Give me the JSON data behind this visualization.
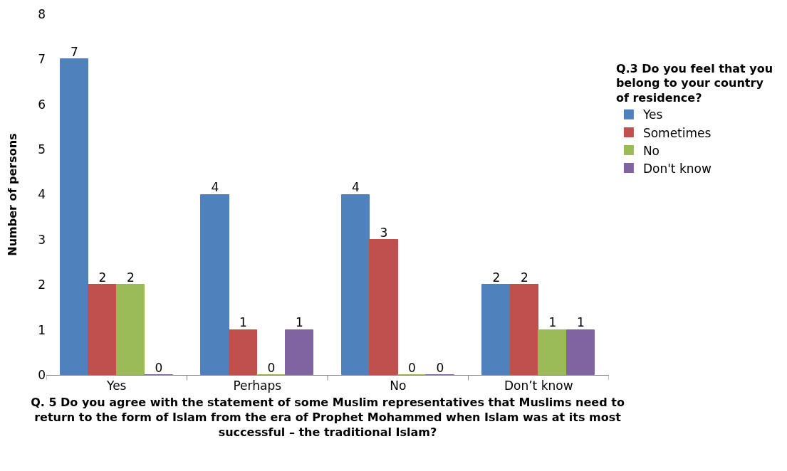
{
  "chart_data": {
    "type": "bar",
    "categories": [
      "Yes",
      "Perhaps",
      "No",
      "Don’t know"
    ],
    "series": [
      {
        "name": "Yes",
        "color": "#4f81bd",
        "values": [
          7,
          4,
          4,
          2
        ]
      },
      {
        "name": "Sometimes",
        "color": "#c0504d",
        "values": [
          2,
          1,
          3,
          2
        ]
      },
      {
        "name": "No",
        "color": "#9bbb59",
        "values": [
          2,
          0,
          0,
          1
        ]
      },
      {
        "name": "Don't know",
        "color": "#8064a2",
        "values": [
          0,
          1,
          0,
          1
        ]
      }
    ],
    "xlabel": "Q. 5 Do you agree with the statement of some Muslim representatives that Muslims need to return to the form of Islam from the era of Prophet Mohammed when Islam was at its most successful – the traditional Islam?",
    "ylabel": "Number of persons",
    "legend_title": "Q.3 Do you feel that you belong to your country of residence?",
    "ylim": [
      0,
      8
    ],
    "yticks": [
      0,
      1,
      2,
      3,
      4,
      5,
      6,
      7,
      8
    ],
    "data_labels": true,
    "grid": false,
    "legend": "right"
  }
}
